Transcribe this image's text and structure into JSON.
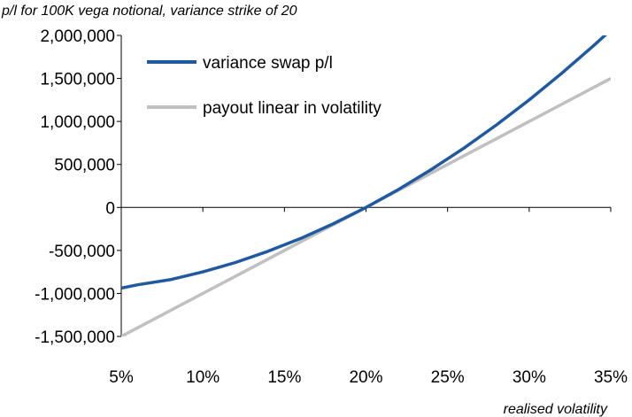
{
  "chart_data": {
    "type": "line",
    "subtitle": "p/l for 100K vega notional, variance strike of 20",
    "xlabel": "realised volatility",
    "ylabel": "",
    "xlim": [
      5,
      35
    ],
    "ylim": [
      -1500000,
      2000000
    ],
    "x_ticks": [
      "5%",
      "10%",
      "15%",
      "20%",
      "25%",
      "30%",
      "35%"
    ],
    "y_ticks": [
      "2,000,000",
      "1,500,000",
      "1,000,000",
      "500,000",
      "0",
      "-500,000",
      "-1,000,000",
      "-1,500,000"
    ],
    "grid": false,
    "legend_position": "top-left",
    "series": [
      {
        "name": "variance swap p/l",
        "color": "#1f5aa0",
        "x": [
          5,
          6,
          8,
          10,
          12,
          14,
          16,
          18,
          20,
          22,
          24,
          26,
          28,
          30,
          32,
          34,
          35
        ],
        "y": [
          -937500,
          -900000,
          -840000,
          -750000,
          -640000,
          -510000,
          -360000,
          -190000,
          0,
          210000,
          440000,
          690000,
          960000,
          1250000,
          1560000,
          1890000,
          2062500
        ]
      },
      {
        "name": "payout linear in volatility",
        "color": "#c0c0c0",
        "x": [
          5,
          35
        ],
        "y": [
          -1500000,
          1500000
        ]
      }
    ]
  }
}
